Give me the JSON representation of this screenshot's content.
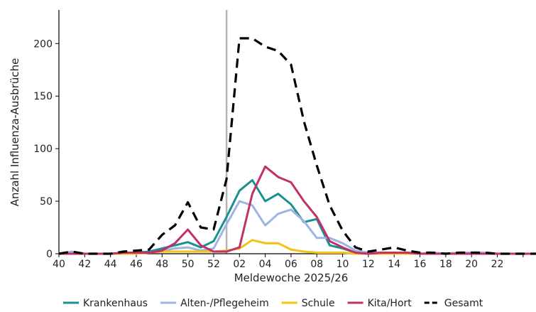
{
  "chart_data": {
    "type": "line",
    "title": "",
    "xlabel": "Meldewoche 2025/26",
    "ylabel": "Anzahl Influenza-Ausbrüche",
    "x": [
      40,
      41,
      42,
      43,
      44,
      45,
      46,
      47,
      48,
      49,
      50,
      51,
      52,
      53,
      54,
      55,
      56,
      57,
      58,
      59,
      60,
      61,
      62,
      63,
      64,
      65,
      66,
      67,
      68,
      69,
      70,
      71,
      72,
      73,
      74,
      75,
      76,
      77
    ],
    "x_tick_values": [
      40,
      42,
      44,
      46,
      48,
      50,
      52,
      54,
      56,
      58,
      60,
      62,
      64,
      66,
      68,
      70,
      72,
      74,
      76
    ],
    "x_tick_labels": [
      "40",
      "42",
      "44",
      "46",
      "48",
      "50",
      "52",
      "02",
      "04",
      "06",
      "08",
      "10",
      "12",
      "14",
      "16",
      "18",
      "20",
      "22",
      ""
    ],
    "xlim": [
      40,
      77
    ],
    "ylim": [
      0,
      232
    ],
    "y_ticks": [
      0,
      50,
      100,
      150,
      200
    ],
    "grid": false,
    "legend_position": "bottom",
    "reference_line_x": 53,
    "series": [
      {
        "name": "Krankenhaus",
        "color": "#1a9090",
        "dash": "solid",
        "values": [
          0,
          1,
          0,
          0,
          0,
          1,
          1,
          2,
          5,
          8,
          11,
          6,
          12,
          35,
          60,
          70,
          50,
          57,
          47,
          30,
          33,
          8,
          5,
          1,
          0,
          1,
          1,
          1,
          0,
          0,
          0,
          0,
          0,
          0,
          0,
          0,
          0,
          0
        ]
      },
      {
        "name": "Alten-/Pflegeheim",
        "color": "#9db5e0",
        "dash": "solid",
        "values": [
          0,
          2,
          0,
          0,
          0,
          1,
          1,
          1,
          3,
          5,
          6,
          3,
          5,
          28,
          50,
          46,
          27,
          38,
          42,
          31,
          15,
          15,
          10,
          3,
          1,
          1,
          1,
          0,
          0,
          1,
          0,
          1,
          1,
          1,
          0,
          0,
          0,
          0
        ]
      },
      {
        "name": "Schule",
        "color": "#f5c211",
        "dash": "solid",
        "values": [
          0,
          0,
          0,
          0,
          0,
          0,
          0,
          1,
          2,
          2,
          2,
          2,
          2,
          3,
          5,
          13,
          10,
          10,
          4,
          2,
          1,
          1,
          1,
          0,
          0,
          0,
          0,
          0,
          0,
          0,
          0,
          0,
          0,
          0,
          0,
          0,
          0,
          0
        ]
      },
      {
        "name": "Kita/Hort",
        "color": "#c0306a",
        "dash": "solid",
        "values": [
          0,
          0,
          0,
          0,
          0,
          1,
          1,
          1,
          3,
          10,
          23,
          8,
          2,
          2,
          6,
          57,
          83,
          73,
          68,
          50,
          35,
          12,
          6,
          1,
          0,
          1,
          1,
          1,
          0,
          0,
          0,
          0,
          0,
          0,
          0,
          0,
          0,
          0
        ]
      },
      {
        "name": "Gesamt",
        "color": "#000000",
        "dash": "dashed",
        "values": [
          0,
          2,
          0,
          0,
          0,
          2,
          3,
          4,
          18,
          27,
          49,
          25,
          23,
          71,
          205,
          205,
          197,
          193,
          180,
          126,
          84,
          46,
          22,
          6,
          2,
          4,
          6,
          3,
          1,
          1,
          0,
          1,
          1,
          1,
          0,
          0,
          0,
          0
        ]
      }
    ]
  }
}
